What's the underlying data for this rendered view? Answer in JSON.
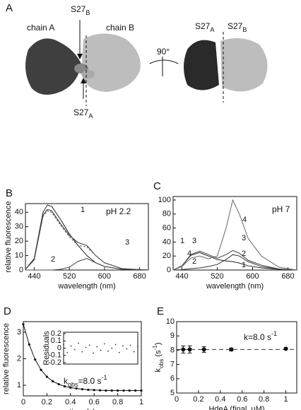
{
  "panel_a": {
    "panel": "A",
    "chain_a": "chain A",
    "chain_b": "chain B",
    "rotation": "90°",
    "sites": [
      {
        "text": "S27",
        "sub": "B"
      },
      {
        "text": "S27",
        "sub": "A"
      },
      {
        "text": "S27",
        "sub": "A"
      },
      {
        "text": "S27",
        "sub": "B"
      }
    ]
  },
  "chart_data": [
    {
      "type": "line",
      "panel": "B",
      "subtitle": "pH 2.2",
      "xlabel": "wavelength (nm)",
      "ylabel": "relative fluorescence",
      "x": [
        420,
        440,
        460,
        470,
        480,
        500,
        520,
        540,
        560,
        580,
        600,
        640,
        700
      ],
      "series": [
        {
          "name": "1",
          "color": "#222",
          "values": [
            0.5,
            8,
            40,
            45,
            44,
            35,
            25,
            17,
            10,
            5,
            2.5,
            0.5,
            0
          ]
        },
        {
          "name": "2",
          "color": "#444",
          "values": [
            0,
            0,
            0,
            0,
            0,
            0.5,
            2,
            6,
            8,
            5,
            2.5,
            0.5,
            0
          ]
        },
        {
          "name": "3",
          "color": "#333",
          "values": [
            0.5,
            7,
            38,
            42,
            41,
            32,
            24,
            19,
            17,
            10,
            5,
            1,
            0
          ]
        },
        {
          "color": "#555",
          "dash": true,
          "values": [
            0.5,
            7,
            37,
            41,
            40,
            31,
            23,
            17,
            16,
            10,
            5,
            1,
            0
          ]
        }
      ],
      "xlim": [
        420,
        700
      ],
      "ylim": [
        0,
        46
      ],
      "xticks": [
        440,
        520,
        600,
        680
      ],
      "yticks": [
        0,
        10,
        20,
        30,
        40
      ]
    },
    {
      "type": "line",
      "panel": "C",
      "subtitle": "pH 7",
      "xlabel": "wavelength (nm)",
      "x": [
        420,
        440,
        460,
        480,
        500,
        520,
        540,
        555,
        570,
        590,
        620,
        660,
        700
      ],
      "series": [
        {
          "name": "1",
          "color": "#222",
          "values": [
            0,
            6,
            21,
            25,
            20,
            15,
            13,
            12,
            10,
            6,
            3,
            1,
            0
          ]
        },
        {
          "name": "2",
          "color": "#333",
          "values": [
            0,
            0.5,
            2,
            3,
            5,
            8,
            15,
            22,
            20,
            12,
            5,
            1,
            0
          ]
        },
        {
          "name": "3",
          "color": "#444",
          "values": [
            0,
            6,
            22,
            27,
            22,
            17,
            22,
            28,
            24,
            14,
            7,
            1.5,
            0
          ]
        },
        {
          "name": "4",
          "color": "#666",
          "values": [
            0,
            5,
            17,
            20,
            16,
            20,
            60,
            100,
            80,
            45,
            20,
            4,
            0
          ]
        }
      ],
      "xlim": [
        420,
        700
      ],
      "ylim": [
        0,
        105
      ],
      "xticks": [
        440,
        520,
        600,
        680
      ],
      "yticks": [
        0,
        20,
        40,
        60,
        80,
        100
      ]
    },
    {
      "type": "line",
      "panel": "D",
      "xlabel": "time (s)",
      "ylabel": "relative fluorescence",
      "markers": true,
      "annotation": [
        {
          "text": "k"
        },
        {
          "text": "obs",
          "pos": "sub"
        },
        {
          "text": "=8.0 s"
        },
        {
          "text": "-1",
          "pos": "sup"
        }
      ],
      "x": [
        0,
        0.05,
        0.1,
        0.15,
        0.2,
        0.25,
        0.3,
        0.35,
        0.4,
        0.45,
        0.5,
        0.55,
        0.6,
        0.65,
        0.7,
        0.75,
        0.8,
        0.85,
        0.9,
        0.95,
        1
      ],
      "series": [
        {
          "color": "#111",
          "values": [
            3.3,
            2.54,
            1.97,
            1.58,
            1.32,
            1.15,
            1.04,
            0.96,
            0.91,
            0.88,
            0.85,
            0.83,
            0.82,
            0.81,
            0.8,
            0.8,
            0.8,
            0.8,
            0.8,
            0.8,
            0.8
          ]
        }
      ],
      "xlim": [
        0,
        1
      ],
      "ylim": [
        0.6,
        3.4
      ],
      "xticks": [
        0,
        0.2,
        0.4,
        0.6,
        0.8,
        1
      ],
      "yticks": [
        1,
        2,
        3
      ]
    },
    {
      "type": "scatter",
      "ylabel": "Residuals",
      "x": [
        0,
        0.05,
        0.1,
        0.15,
        0.2,
        0.25,
        0.3,
        0.35,
        0.4,
        0.45,
        0.5,
        0.55,
        0.6,
        0.65,
        0.7,
        0.75,
        0.8,
        0.85,
        0.9,
        0.95,
        1
      ],
      "series": [
        {
          "color": "#333",
          "values": [
            0.05,
            -0.06,
            0.03,
            -0.02,
            0.07,
            -0.05,
            0.01,
            0.04,
            -0.07,
            0.02,
            -0.03,
            0.06,
            -0.04,
            0.0,
            0.05,
            -0.06,
            0.03,
            -0.01,
            0.04,
            -0.05,
            0.02
          ]
        }
      ],
      "xlim": [
        0,
        1
      ],
      "ylim": [
        -0.22,
        0.22
      ],
      "yticks": [
        -0.2,
        -0.1,
        0,
        0.1,
        0.2
      ]
    },
    {
      "type": "errorbar",
      "panel": "E",
      "xlabel": "HdeA (final, µM)",
      "ylabel": [
        {
          "text": "k"
        },
        {
          "text": "obs",
          "pos": "sub"
        },
        {
          "text": " (s"
        },
        {
          "text": "-1",
          "pos": "sup"
        },
        {
          "text": ")"
        }
      ],
      "annotation": [
        {
          "text": "k=8.0 s"
        },
        {
          "text": "-1",
          "pos": "sup"
        }
      ],
      "x": [
        0.06,
        0.12,
        0.25,
        0.5,
        1
      ],
      "values": [
        8.05,
        8.05,
        8.05,
        8.05,
        8.1
      ],
      "errors": [
        0.25,
        0.25,
        0.2,
        0.1,
        0.05
      ],
      "color": "#111",
      "hline": 8.05,
      "xlim": [
        0,
        1.1
      ],
      "ylim": [
        5,
        10
      ],
      "xticks": [
        0,
        0.2,
        0.4,
        0.6,
        0.8,
        1
      ],
      "yticks": [
        5,
        6,
        7,
        8,
        9,
        10
      ]
    }
  ]
}
